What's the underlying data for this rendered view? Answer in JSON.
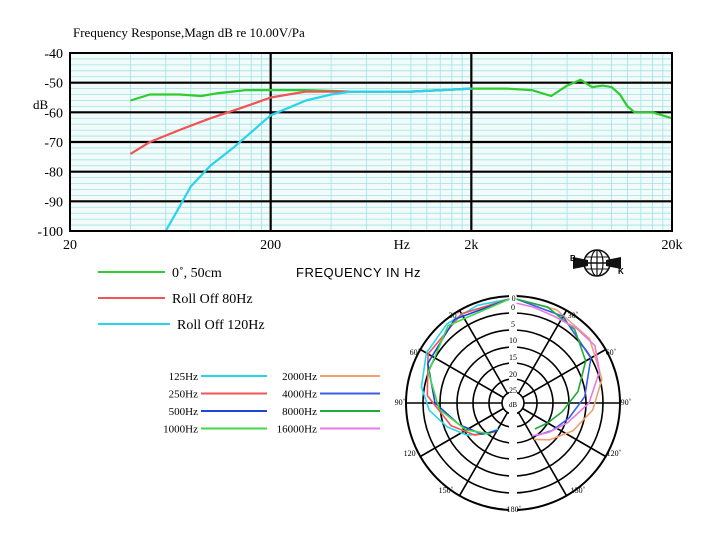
{
  "header": {
    "title": "Frequency  Response,Magn  dB re 10.00V/Pa"
  },
  "chart_data": [
    {
      "type": "line",
      "title": "Frequency  Response,Magn  dB re 10.00V/Pa",
      "xlabel": "FREQUENCY  IN  Hz",
      "ylabel": "dB",
      "x_scale": "log",
      "xlim": [
        20,
        20000
      ],
      "ylim": [
        -100,
        -40
      ],
      "grid": true,
      "x_tick_labels": [
        {
          "value": 20,
          "label": "20"
        },
        {
          "value": 200,
          "label": "200"
        },
        {
          "value": 900,
          "label": "Hz"
        },
        {
          "value": 2000,
          "label": "2k"
        },
        {
          "value": 20000,
          "label": "20k"
        }
      ],
      "y_ticks": [
        -40,
        -50,
        -60,
        -70,
        -80,
        -90,
        -100
      ],
      "y_tick_labels": [
        "-40",
        "-50",
        "-60",
        "-70",
        "-80",
        "-90",
        "-100"
      ],
      "legend_position": "bottom-left",
      "series": [
        {
          "name": "0˚, 50cm",
          "color": "#2ecc2e",
          "x": [
            40,
            50,
            70,
            90,
            110,
            150,
            200,
            300,
            500,
            1000,
            2000,
            3000,
            4000,
            5000,
            6000,
            7000,
            8000,
            9000,
            10000,
            11000,
            12000,
            13000,
            14000,
            16000,
            20000
          ],
          "y": [
            -56,
            -54,
            -54,
            -54.5,
            -53.5,
            -52.5,
            -52.5,
            -52.5,
            -53,
            -53,
            -52,
            -52,
            -52.5,
            -54.5,
            -51,
            -49,
            -51.5,
            -51,
            -51.5,
            -54,
            -58,
            -60,
            -60,
            -60,
            -62
          ]
        },
        {
          "name": "Roll Off  80Hz",
          "color": "#f05454",
          "x": [
            40,
            50,
            70,
            100,
            150,
            200,
            300,
            400,
            500,
            1000,
            2000
          ],
          "y": [
            -74,
            -70,
            -66,
            -62,
            -58,
            -55,
            -53,
            -53,
            -53,
            -53,
            -52
          ]
        },
        {
          "name": "Roll Off  120Hz",
          "color": "#27d4ee",
          "x": [
            60,
            70,
            80,
            100,
            130,
            200,
            300,
            400,
            500,
            1000,
            2000
          ],
          "y": [
            -100,
            -92,
            -85,
            -78,
            -72,
            -61,
            -56,
            -54,
            -53,
            -53,
            -52
          ]
        }
      ]
    },
    {
      "type": "polar",
      "angle_labels": [
        "0˚",
        "30˚",
        "60˚",
        "90˚",
        "120˚",
        "150˚",
        "180˚"
      ],
      "radial_labels": [
        "0",
        "5",
        "10",
        "15",
        "20",
        "25"
      ],
      "radial_unit": "dB",
      "series": [
        {
          "name": "125Hz",
          "color": "#27d4ee"
        },
        {
          "name": "250Hz",
          "color": "#f05454"
        },
        {
          "name": "500Hz",
          "color": "#2045d8"
        },
        {
          "name": "1000Hz",
          "color": "#44d844"
        },
        {
          "name": "2000Hz",
          "color": "#f0a070"
        },
        {
          "name": "4000Hz",
          "color": "#3b5ee8"
        },
        {
          "name": "8000Hz",
          "color": "#1faa3a"
        },
        {
          "name": "16000Hz",
          "color": "#e67ae6"
        }
      ],
      "legend_left": [
        "125Hz",
        "250Hz",
        "500Hz",
        "1000Hz"
      ],
      "legend_right": [
        "2000Hz",
        "4000Hz",
        "8000Hz",
        "16000Hz"
      ]
    }
  ],
  "logo": {
    "letters": [
      "B",
      "K"
    ]
  }
}
